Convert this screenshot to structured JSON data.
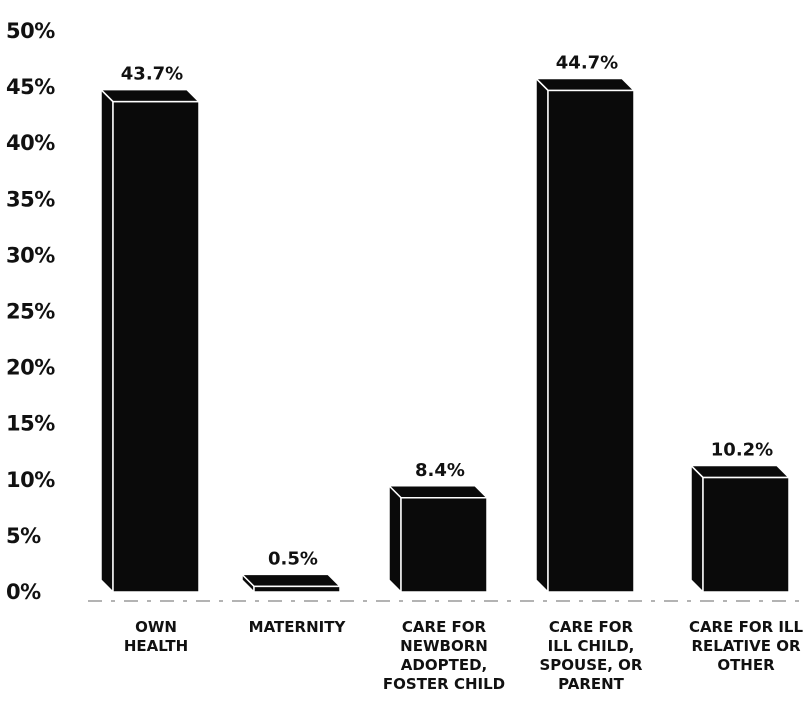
{
  "chart_data": {
    "type": "bar",
    "title": "",
    "xlabel": "",
    "ylabel": "",
    "ylim": [
      0,
      50
    ],
    "y_ticks": [
      "0%",
      "5%",
      "10%",
      "15%",
      "20%",
      "25%",
      "30%",
      "35%",
      "40%",
      "45%",
      "50%"
    ],
    "categories": [
      [
        "OWN",
        "HEALTH"
      ],
      [
        "MATERNITY"
      ],
      [
        "CARE FOR",
        "NEWBORN",
        "ADOPTED,",
        "FOSTER CHILD"
      ],
      [
        "CARE FOR",
        "ILL CHILD,",
        "SPOUSE, OR",
        "PARENT"
      ],
      [
        "CARE FOR ILL",
        "RELATIVE OR",
        "OTHER"
      ]
    ],
    "values": [
      43.7,
      0.5,
      8.4,
      44.7,
      10.2
    ],
    "value_labels": [
      "43.7%",
      "0.5%",
      "8.4%",
      "44.7%",
      "10.2%"
    ],
    "grid": false,
    "legend": "none",
    "bar_style": "3d",
    "colors": {
      "bar_fill": "#0a0a0a",
      "bar_edge": "#ffffff",
      "text": "#111111"
    }
  }
}
